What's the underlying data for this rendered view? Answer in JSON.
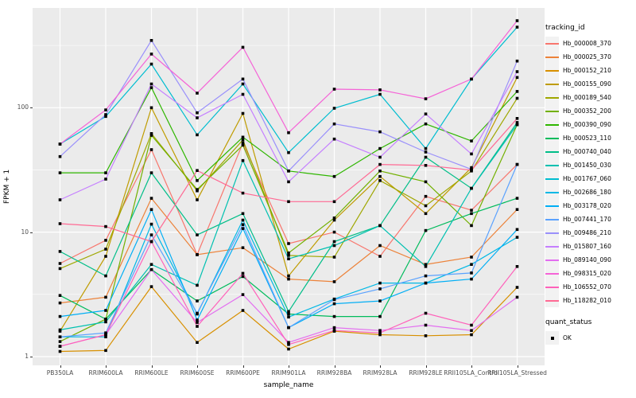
{
  "legend": {
    "tracking_title": "tracking_id",
    "quant_title": "quant_status",
    "quant_item": "OK"
  },
  "axes": {
    "y_tick_labels": [
      "100",
      "10",
      "1"
    ],
    "y_tick_values": [
      100,
      10,
      1
    ]
  },
  "chart_data": {
    "type": "line",
    "title": "",
    "xlabel": "sample_name",
    "ylabel": "FPKM + 1",
    "y_scale": "log10",
    "ylim": [
      0.85,
      630
    ],
    "grid": true,
    "panel_background": "#EBEBEB",
    "gridline_color": "#FFFFFF",
    "legend_position": "right",
    "point_marker": "filled-black-square",
    "y_major_gridlines": [
      1,
      10,
      100
    ],
    "y_minor_gridlines": [
      3.162,
      31.62,
      316.2
    ],
    "categories": [
      "PB350LA",
      "RRIM600LA",
      "RRIM600LE",
      "RRIM600SE",
      "RRIM600PE",
      "RRIM901LA",
      "RRIM928BA",
      "RRIM928LA",
      "RRIM928LE",
      "RRII105LA_Control",
      "RRII105LA_Stressed"
    ],
    "series": [
      {
        "name": "Hb_000008_370",
        "color": "#F8766D",
        "values": [
          5.6,
          8.6,
          46,
          6.6,
          52,
          8.1,
          10,
          6.4,
          19.4,
          15,
          35
        ]
      },
      {
        "name": "Hb_000025_370",
        "color": "#EC8239",
        "values": [
          2.7,
          3.0,
          18.7,
          6.6,
          7.5,
          4.2,
          4.0,
          7.8,
          5.5,
          6.3,
          15.2
        ]
      },
      {
        "name": "Hb_000152_210",
        "color": "#D89000",
        "values": [
          1.1,
          1.12,
          3.65,
          1.3,
          2.35,
          1.15,
          1.6,
          1.5,
          1.47,
          1.5,
          3.6
        ]
      },
      {
        "name": "Hb_000155_090",
        "color": "#BF9C00",
        "values": [
          1.6,
          6.4,
          100,
          18.2,
          90,
          4.45,
          12.5,
          28,
          14.1,
          33,
          175
        ]
      },
      {
        "name": "Hb_000189_540",
        "color": "#9FA700",
        "values": [
          5.1,
          7.3,
          62,
          21.5,
          55,
          6.5,
          6.3,
          26,
          16.3,
          31,
          119
        ]
      },
      {
        "name": "Hb_000352_200",
        "color": "#72B000",
        "values": [
          1.32,
          2.0,
          60,
          22,
          50,
          6.8,
          13,
          31,
          25.4,
          11.3,
          73
        ]
      },
      {
        "name": "Hb_000390_090",
        "color": "#2FB600",
        "values": [
          30,
          30,
          145,
          26,
          58,
          31,
          28,
          47,
          74,
          54,
          135
        ]
      },
      {
        "name": "Hb_000523_110",
        "color": "#00BB5C",
        "values": [
          3.1,
          2.0,
          5.0,
          2.8,
          4.4,
          2.2,
          2.1,
          2.1,
          10.3,
          14.1,
          18.7
        ]
      },
      {
        "name": "Hb_000740_040",
        "color": "#00BE88",
        "values": [
          7.0,
          4.45,
          30,
          9.5,
          14.1,
          2.3,
          8.4,
          11.3,
          40,
          22.5,
          76
        ]
      },
      {
        "name": "Hb_001450_030",
        "color": "#00C0B0",
        "values": [
          1.64,
          1.9,
          5.5,
          3.74,
          37.6,
          6.1,
          7.8,
          11.3,
          5.3,
          22.5,
          73
        ]
      },
      {
        "name": "Hb_001767_060",
        "color": "#00BDD0",
        "values": [
          51,
          85,
          224,
          60.5,
          155,
          43.6,
          99,
          128,
          47,
          170,
          444
        ]
      },
      {
        "name": "Hb_002686_180",
        "color": "#00B8E5",
        "values": [
          1.44,
          1.44,
          11.6,
          2.2,
          12.5,
          2.08,
          2.9,
          3.9,
          3.9,
          5.5,
          9.1
        ]
      },
      {
        "name": "Hb_003178_020",
        "color": "#00AEF5",
        "values": [
          2.1,
          2.35,
          15.2,
          1.97,
          10.7,
          1.71,
          2.66,
          2.8,
          3.9,
          4.2,
          10.5
        ]
      },
      {
        "name": "Hb_007441_170",
        "color": "#5BA2FE",
        "values": [
          1.44,
          1.55,
          9.5,
          2.23,
          11.5,
          1.71,
          2.87,
          3.5,
          4.45,
          4.7,
          35
        ]
      },
      {
        "name": "Hb_009486_210",
        "color": "#9A90FB",
        "values": [
          40.5,
          88,
          347,
          91,
          170,
          31,
          74,
          64,
          44,
          32,
          237
        ]
      },
      {
        "name": "Hb_015807_160",
        "color": "#C57FFF",
        "values": [
          18.2,
          26.7,
          155,
          83,
          128,
          25.4,
          56,
          40,
          89,
          42.5,
          195
        ]
      },
      {
        "name": "Hb_089140_090",
        "color": "#E36EF0",
        "values": [
          1.21,
          1.5,
          5.0,
          1.88,
          3.15,
          1.3,
          1.71,
          1.62,
          1.79,
          1.62,
          3.0
        ]
      },
      {
        "name": "Hb_098315_020",
        "color": "#F563D7",
        "values": [
          51,
          96,
          270,
          131,
          306,
          63,
          141,
          139,
          118,
          170,
          500
        ]
      },
      {
        "name": "Hb_106552_070",
        "color": "#FF61BA",
        "values": [
          1.21,
          1.5,
          8.4,
          1.75,
          4.67,
          1.25,
          1.62,
          1.55,
          2.23,
          1.79,
          5.3
        ]
      },
      {
        "name": "Hb_118282_010",
        "color": "#FF6A94",
        "values": [
          11.7,
          11.1,
          8.4,
          31.3,
          20.6,
          17.6,
          17.6,
          35,
          34.4,
          31.5,
          82
        ]
      }
    ]
  }
}
